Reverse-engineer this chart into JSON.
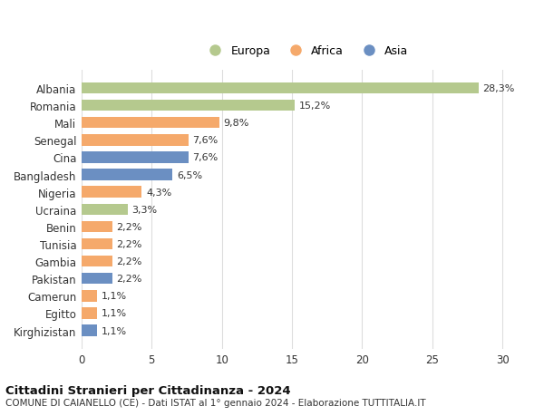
{
  "categories": [
    "Kirghizistan",
    "Egitto",
    "Camerun",
    "Pakistan",
    "Gambia",
    "Tunisia",
    "Benin",
    "Ucraina",
    "Nigeria",
    "Bangladesh",
    "Cina",
    "Senegal",
    "Mali",
    "Romania",
    "Albania"
  ],
  "values": [
    1.1,
    1.1,
    1.1,
    2.2,
    2.2,
    2.2,
    2.2,
    3.3,
    4.3,
    6.5,
    7.6,
    7.6,
    9.8,
    15.2,
    28.3
  ],
  "colors": [
    "#6b8fc2",
    "#f5a96b",
    "#f5a96b",
    "#6b8fc2",
    "#f5a96b",
    "#f5a96b",
    "#f5a96b",
    "#b5c98e",
    "#f5a96b",
    "#6b8fc2",
    "#6b8fc2",
    "#f5a96b",
    "#f5a96b",
    "#b5c98e",
    "#b5c98e"
  ],
  "labels": [
    "1,1%",
    "1,1%",
    "1,1%",
    "2,2%",
    "2,2%",
    "2,2%",
    "2,2%",
    "3,3%",
    "4,3%",
    "6,5%",
    "7,6%",
    "7,6%",
    "9,8%",
    "15,2%",
    "28,3%"
  ],
  "europa_color": "#b5c98e",
  "africa_color": "#f5a96b",
  "asia_color": "#6b8fc2",
  "background_color": "#ffffff",
  "grid_color": "#dddddd",
  "title": "Cittadini Stranieri per Cittadinanza - 2024",
  "subtitle": "COMUNE DI CAIANELLO (CE) - Dati ISTAT al 1° gennaio 2024 - Elaborazione TUTTITALIA.IT",
  "xlim": [
    0,
    32
  ],
  "xticks": [
    0,
    5,
    10,
    15,
    20,
    25,
    30
  ],
  "bar_height": 0.65
}
